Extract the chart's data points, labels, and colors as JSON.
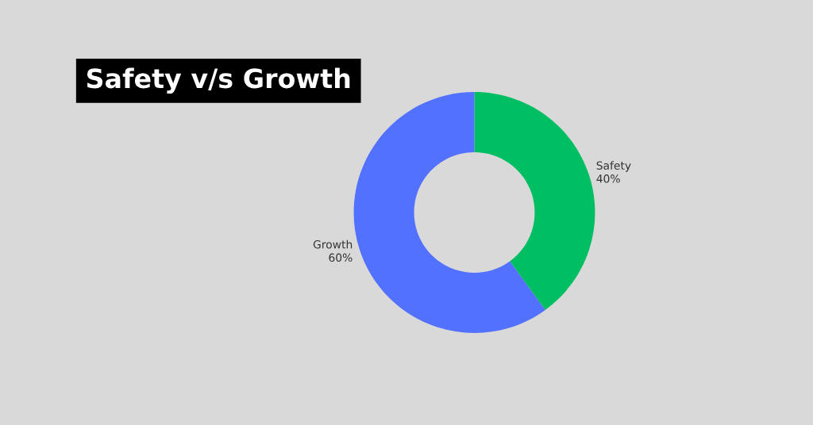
{
  "chart_data": {
    "type": "donut",
    "title": "Safety v/s Growth",
    "categories": [
      "Safety",
      "Growth"
    ],
    "values": [
      40,
      60
    ],
    "colors": [
      "#00bf63",
      "#5271ff"
    ],
    "value_labels": [
      "40%",
      "60%"
    ]
  }
}
